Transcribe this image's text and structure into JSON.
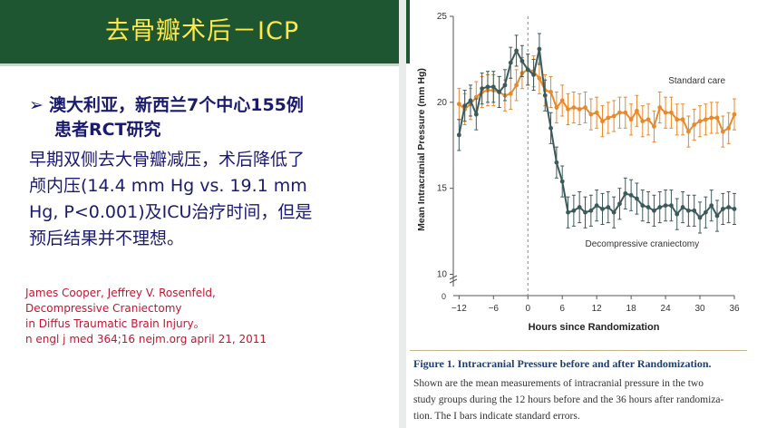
{
  "slide": {
    "title": "去骨瓣术后－ICP",
    "bullet_mark": "➢",
    "bullet_line1": "澳大利亚，新西兰7个中心155例",
    "bullet_line2": "患者RCT研究",
    "body_lines": [
      "早期双侧去大骨瓣减压，术后降低了",
      "颅内压(14.4 mm Hg vs. 19.1 mm",
      "Hg, P<0.001)及ICU治疗时间，但是",
      "预后结果并不理想。"
    ],
    "reference_lines": [
      "James Cooper, Jeffrey V. Rosenfeld,",
      "Decompressive Craniectomy",
      "in Diffus Traumatic Brain Injury。",
      "n engl j med 364;16 nejm.org april 21, 2011"
    ]
  },
  "figure": {
    "caption_title_bold": "Figure 1.",
    "caption_title_rest": "Intracranial Pressure before and after Randomization.",
    "caption_body_lines": [
      "Shown are the mean measurements of intracranial pressure in the two",
      "study groups during the 12 hours before and the 36 hours after randomiza-",
      "tion. The I bars indicate standard errors."
    ]
  },
  "chart_data": {
    "type": "line",
    "xlabel": "Hours since Randomization",
    "ylabel": "Mean Intracranial Pressure (mm Hg)",
    "xlim": [
      -13,
      36
    ],
    "ylim": [
      9.5,
      25
    ],
    "x_ticks": [
      -12,
      -6,
      0,
      6,
      12,
      18,
      24,
      30,
      36
    ],
    "x_tick_labels": [
      "−12",
      "−6",
      "0",
      "6",
      "12",
      "18",
      "24",
      "30",
      "36"
    ],
    "y_ticks": [
      10,
      15,
      20,
      25
    ],
    "grid": false,
    "reference_line_x": 0,
    "colors": {
      "standard_care": "#e8892b",
      "decompressive": "#3d5a5b"
    },
    "series": [
      {
        "name": "Standard care",
        "color": "#e8892b",
        "x": [
          -12,
          -11,
          -10,
          -9,
          -8,
          -7,
          -6,
          -5,
          -4,
          -3,
          -2,
          -1,
          0,
          1,
          2,
          3,
          4,
          5,
          6,
          7,
          8,
          9,
          10,
          11,
          12,
          13,
          14,
          15,
          16,
          17,
          18,
          19,
          20,
          21,
          22,
          23,
          24,
          25,
          26,
          27,
          28,
          29,
          30,
          31,
          32,
          33,
          34,
          35,
          36
        ],
        "y": [
          19.9,
          19.6,
          19.9,
          20.3,
          20.6,
          20.7,
          20.7,
          20.6,
          20.4,
          20.5,
          21.0,
          21.7,
          21.9,
          21.8,
          21.4,
          20.7,
          20.6,
          19.7,
          20.1,
          19.6,
          19.7,
          19.6,
          19.7,
          19.3,
          19.4,
          18.9,
          19.1,
          19.2,
          19.4,
          19.4,
          19.0,
          19.5,
          18.9,
          19.0,
          18.6,
          19.7,
          19.4,
          19.4,
          19.0,
          19.0,
          18.3,
          18.7,
          18.9,
          19.0,
          19.1,
          19.1,
          18.3,
          18.5,
          19.3
        ],
        "err": [
          0.9,
          0.9,
          0.9,
          0.9,
          0.9,
          0.9,
          0.9,
          0.9,
          0.9,
          0.9,
          0.9,
          0.9,
          0.9,
          0.9,
          0.9,
          0.9,
          0.9,
          0.9,
          0.9,
          0.9,
          0.9,
          0.9,
          0.9,
          0.9,
          0.9,
          0.9,
          0.9,
          0.9,
          0.9,
          0.9,
          0.9,
          0.9,
          0.9,
          0.9,
          0.9,
          0.9,
          0.9,
          0.9,
          0.9,
          0.9,
          0.9,
          0.9,
          0.9,
          0.9,
          0.9,
          0.9,
          0.9,
          0.9,
          0.9
        ],
        "label": "Standard care"
      },
      {
        "name": "Decompressive craniectomy",
        "color": "#3d5a5b",
        "x": [
          -12,
          -11,
          -10,
          -9,
          -8,
          -7,
          -6,
          -5,
          -4,
          -3,
          -2,
          -1,
          0,
          1,
          2,
          3,
          4,
          5,
          6,
          7,
          8,
          9,
          10,
          11,
          12,
          13,
          14,
          15,
          16,
          17,
          18,
          19,
          20,
          21,
          22,
          23,
          24,
          25,
          26,
          27,
          28,
          29,
          30,
          31,
          32,
          33,
          34,
          35,
          36
        ],
        "y": [
          18.1,
          19.8,
          20.1,
          19.3,
          20.8,
          20.9,
          20.9,
          20.6,
          21.0,
          22.3,
          23.0,
          22.4,
          21.9,
          21.6,
          23.1,
          20.4,
          18.5,
          16.5,
          15.4,
          13.6,
          13.7,
          13.9,
          13.6,
          13.7,
          14.0,
          13.8,
          13.9,
          13.6,
          14.1,
          14.7,
          14.6,
          14.4,
          14.0,
          13.9,
          13.7,
          13.9,
          14.0,
          14.0,
          13.5,
          13.9,
          13.7,
          13.7,
          13.3,
          13.6,
          14.0,
          13.4,
          13.8,
          13.9,
          13.8
        ],
        "err": [
          0.9,
          0.9,
          0.9,
          0.9,
          0.9,
          0.9,
          0.9,
          0.9,
          0.9,
          0.9,
          0.9,
          0.9,
          0.9,
          0.9,
          0.9,
          0.9,
          0.9,
          0.9,
          0.9,
          0.9,
          0.9,
          0.9,
          0.9,
          0.9,
          0.9,
          0.9,
          0.9,
          0.9,
          0.9,
          0.9,
          0.9,
          0.9,
          0.9,
          0.9,
          0.9,
          0.9,
          0.9,
          0.9,
          0.9,
          0.9,
          0.9,
          0.9,
          0.9,
          0.9,
          0.9,
          0.9,
          0.9,
          0.9,
          0.9
        ],
        "label": "Decompressive craniectomy"
      }
    ]
  }
}
